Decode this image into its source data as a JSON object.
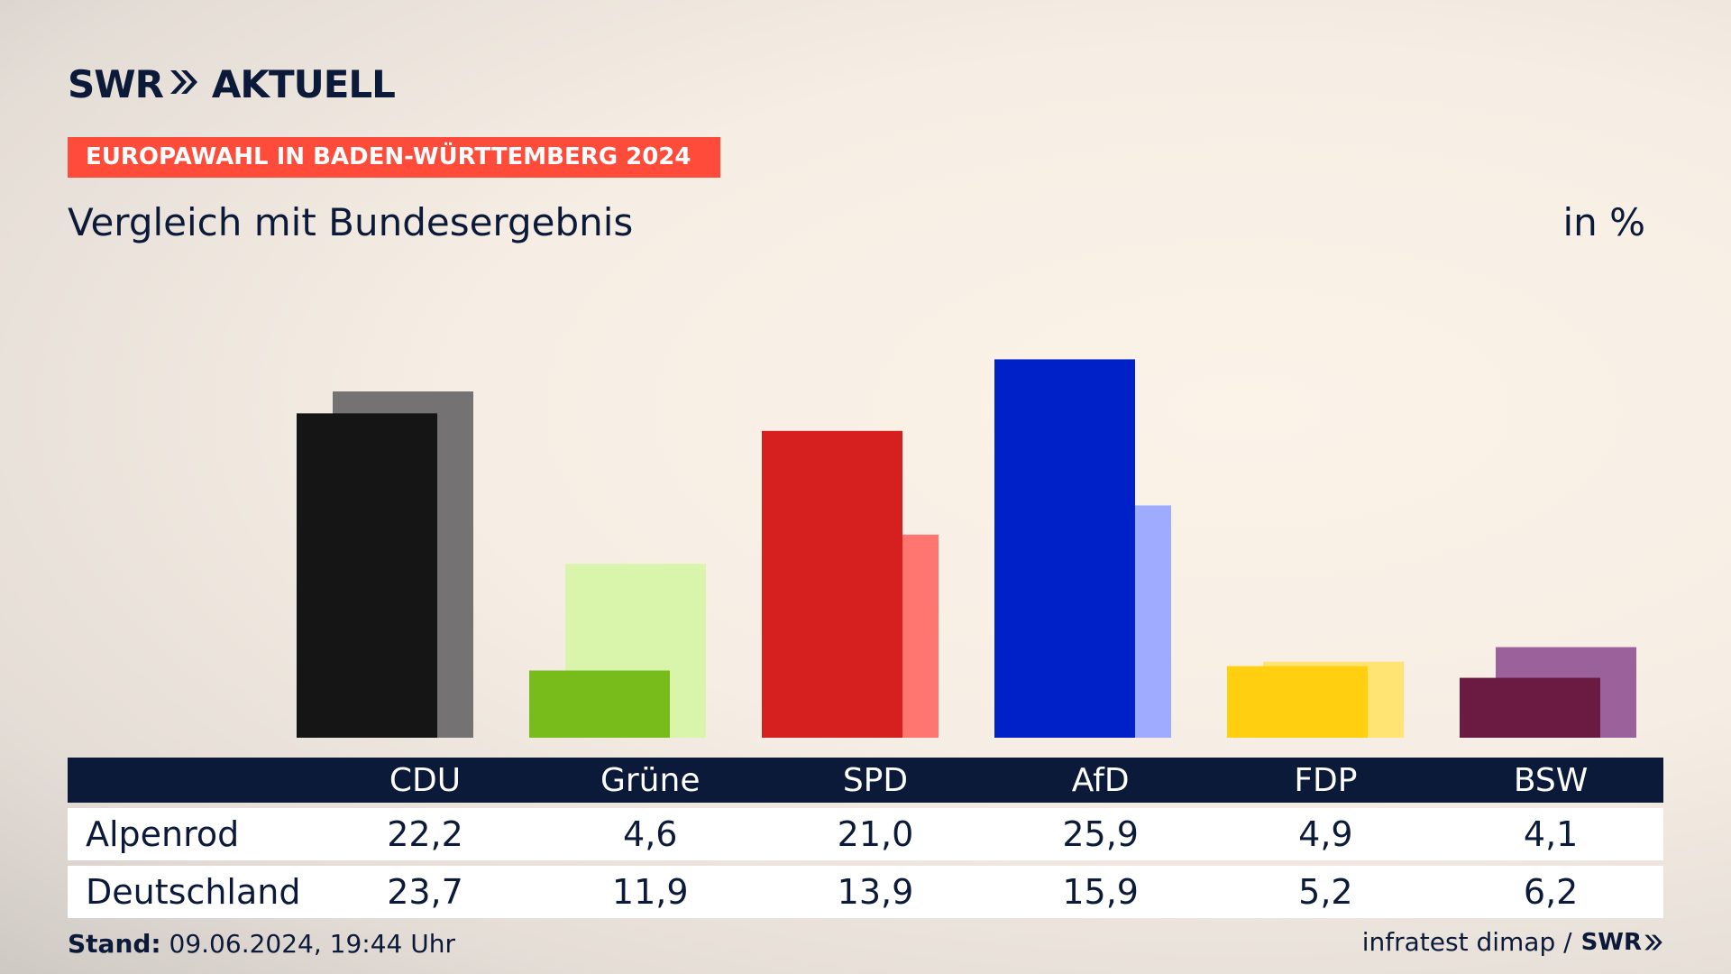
{
  "header": {
    "logo_swr": "SWR",
    "logo_aktuell": "AKTUELL",
    "tag": "EUROPAWAHL IN BADEN-WÜRTTEMBERG 2024",
    "subtitle": "Vergleich mit Bundesergebnis",
    "unit": "in %"
  },
  "table": {
    "rows": [
      {
        "label": "Alpenrod",
        "values": [
          "22,2",
          "4,6",
          "21,0",
          "25,9",
          "4,9",
          "4,1"
        ]
      },
      {
        "label": "Deutschland",
        "values": [
          "23,7",
          "11,9",
          "13,9",
          "15,9",
          "5,2",
          "6,2"
        ]
      }
    ]
  },
  "footer": {
    "stand_label": "Stand:",
    "stand_value": "09.06.2024, 19:44 Uhr",
    "source": "infratest dimap /",
    "source_logo": "SWR"
  },
  "chart_data": {
    "type": "bar",
    "categories": [
      "CDU",
      "Grüne",
      "SPD",
      "AfD",
      "FDP",
      "BSW"
    ],
    "series": [
      {
        "name": "Alpenrod",
        "values": [
          22.2,
          4.6,
          21.0,
          25.9,
          4.9,
          4.1
        ],
        "colors": [
          "#151515",
          "#78bc1c",
          "#d62020",
          "#0020c8",
          "#ffcf10",
          "#6b1a42"
        ]
      },
      {
        "name": "Deutschland",
        "values": [
          23.7,
          11.9,
          13.9,
          15.9,
          5.2,
          6.2
        ],
        "colors": [
          "#747272",
          "#d9f5ac",
          "#ff7570",
          "#9eabff",
          "#ffe373",
          "#9b619b"
        ]
      }
    ],
    "ylim": [
      0,
      26
    ]
  }
}
